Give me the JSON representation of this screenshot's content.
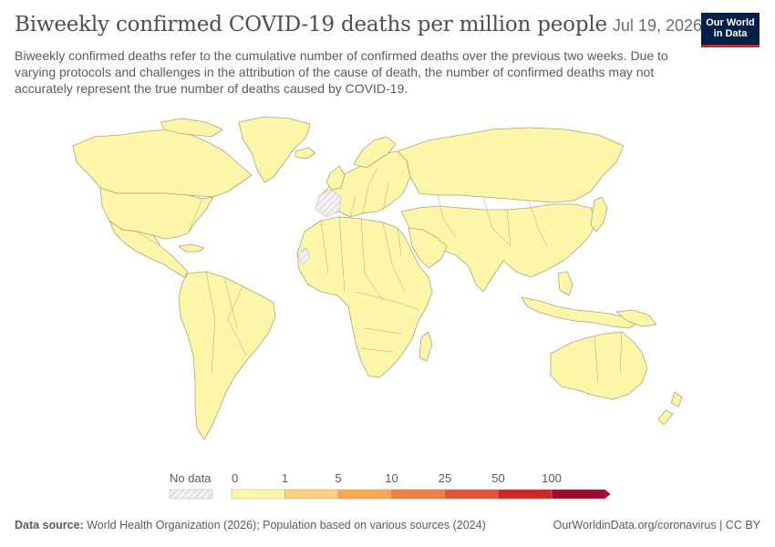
{
  "header": {
    "title": "Biweekly confirmed COVID-19 deaths per million people",
    "date": "Jul 19, 2026",
    "subtitle": "Biweekly confirmed deaths refer to the cumulative number of confirmed deaths over the previous two weeks. Due to varying protocols and challenges in the attribution of the cause of death, the number of confirmed deaths may not accurately represent the true number of deaths caused by COVID-19."
  },
  "logo": {
    "line1": "Our World",
    "line2": "in Data"
  },
  "legend": {
    "no_data_label": "No data",
    "bins": [
      {
        "label": "0",
        "color": "#fdf6a8"
      },
      {
        "label": "1",
        "color": "#fdd07a"
      },
      {
        "label": "5",
        "color": "#f9a849"
      },
      {
        "label": "10",
        "color": "#f37e3c"
      },
      {
        "label": "25",
        "color": "#e6522f"
      },
      {
        "label": "50",
        "color": "#d42424"
      },
      {
        "label": "100",
        "color": "#a5092e"
      }
    ]
  },
  "colors": {
    "land_fill": "#fdf6a8",
    "border": "#a8a67c",
    "no_data": "#e6e6e6"
  },
  "footer": {
    "source_label": "Data source:",
    "source_text": "World Health Organization (2026); Population based on various sources (2024)",
    "right_text": "OurWorldinData.org/coronavirus | CC BY"
  }
}
